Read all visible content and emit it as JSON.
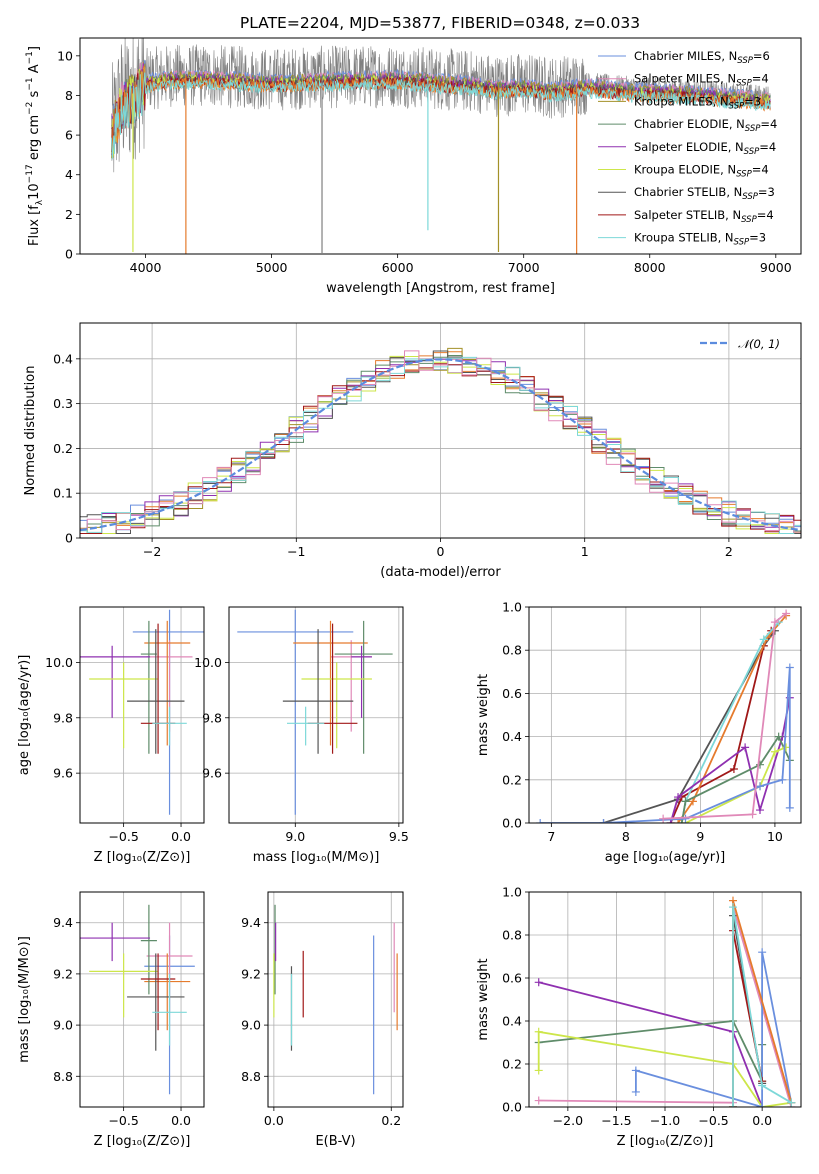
{
  "figure": {
    "title": "PLATE=2204, MJD=53877, FIBERID=0348, z=0.033"
  },
  "colors": {
    "grey": "#808080",
    "blue": "#6a8fde",
    "orange": "#e57b2d",
    "olive": "#a39128",
    "green": "#5f8c6a",
    "purple": "#8f30b0",
    "yellowgreen": "#cde64a",
    "darkgrey": "#555555",
    "darkred": "#a01818",
    "cyan": "#7dd8d8",
    "pink": "#e089b8",
    "gauss": "#5b8cde"
  },
  "legend_models": [
    {
      "label": "Chabrier MILES, N",
      "sub": "SSP",
      "tail": "=6",
      "color": "#6a8fde"
    },
    {
      "label": "Salpeter MILES, N",
      "sub": "SSP",
      "tail": "=4",
      "color": "#e089b8"
    },
    {
      "label": "Kroupa MILES, N",
      "sub": "SSP",
      "tail": "=3",
      "color": "#a39128"
    },
    {
      "label": "Chabrier ELODIE, N",
      "sub": "SSP",
      "tail": "=4",
      "color": "#5f8c6a"
    },
    {
      "label": "Salpeter ELODIE, N",
      "sub": "SSP",
      "tail": "=4",
      "color": "#8f30b0"
    },
    {
      "label": "Kroupa ELODIE, N",
      "sub": "SSP",
      "tail": "=4",
      "color": "#cde64a"
    },
    {
      "label": "Chabrier STELIB, N",
      "sub": "SSP",
      "tail": "=3",
      "color": "#555555"
    },
    {
      "label": "Salpeter STELIB, N",
      "sub": "SSP",
      "tail": "=4",
      "color": "#a01818"
    },
    {
      "label": "Kroupa STELIB, N",
      "sub": "SSP",
      "tail": "=3",
      "color": "#7dd8d8"
    }
  ],
  "chart_data": [
    {
      "id": "spectrum",
      "type": "line",
      "xlabel": "wavelength [Angstrom, rest frame]",
      "ylabel_parts": {
        "pre": "Flux [f",
        "sub1": "λ",
        "mid": "10",
        "sup1": "−17",
        "tail": " erg cm",
        "sup2": "−2",
        "tail2": " s",
        "sup3": "−1",
        "tail3": " A",
        "sup4": "−1",
        "end": "]"
      },
      "xlim": [
        3480,
        9200
      ],
      "ylim": [
        0,
        10.9
      ],
      "xticks": [
        4000,
        5000,
        6000,
        7000,
        8000,
        9000
      ],
      "yticks": [
        0,
        2,
        4,
        6,
        8,
        10
      ],
      "x_range_data": [
        3730,
        8960
      ],
      "continuum": [
        [
          3730,
          6.0
        ],
        [
          3800,
          7.6
        ],
        [
          3900,
          8.1
        ],
        [
          4000,
          8.8
        ],
        [
          4200,
          9.0
        ],
        [
          4500,
          9.0
        ],
        [
          4800,
          8.9
        ],
        [
          5000,
          8.8
        ],
        [
          5300,
          8.9
        ],
        [
          5600,
          8.95
        ],
        [
          6000,
          9.0
        ],
        [
          6300,
          8.85
        ],
        [
          6600,
          8.7
        ],
        [
          6800,
          8.5
        ],
        [
          7000,
          8.6
        ],
        [
          7200,
          8.4
        ],
        [
          7500,
          8.6
        ],
        [
          7800,
          8.4
        ],
        [
          8200,
          8.3
        ],
        [
          8600,
          8.1
        ],
        [
          8960,
          7.9
        ]
      ],
      "spikes": [
        {
          "x": 4320,
          "y": 0.0,
          "series": "orange"
        },
        {
          "x": 3900,
          "y": 0.1,
          "series": "yellowgreen"
        },
        {
          "x": 5400,
          "y": 0.05,
          "series": "grey"
        },
        {
          "x": 6240,
          "y": 1.2,
          "series": "cyan"
        },
        {
          "x": 6800,
          "y": 0.1,
          "series": "olive"
        },
        {
          "x": 7420,
          "y": 0.0,
          "series": "orange"
        }
      ]
    },
    {
      "id": "residuals",
      "type": "histogram",
      "xlabel": "(data-model)/error",
      "ylabel": "Normed distribution",
      "xlim": [
        -2.5,
        2.5
      ],
      "ylim": [
        0,
        0.48
      ],
      "xticks": [
        -2,
        -1,
        0,
        1,
        2
      ],
      "yticks": [
        0.0,
        0.1,
        0.2,
        0.3,
        0.4
      ],
      "legend": "𝒩(0, 1)",
      "bin_width": 0.1
    },
    {
      "id": "age_vs_Z",
      "type": "errorbar",
      "xlabel": "Z [log₁₀(Z/Z⊙)]",
      "ylabel": "age  [log₁₀(age/yr)]",
      "xlim": [
        -0.88,
        0.2
      ],
      "ylim": [
        9.42,
        10.2
      ],
      "xticks": [
        -0.5,
        0.0
      ],
      "yticks": [
        9.6,
        9.8,
        10.0
      ],
      "points": [
        {
          "c": "#6a8fde",
          "x": -0.1,
          "xe": 0.32,
          "y": 10.11,
          "ylo": 9.45,
          "yhi": 10.19
        },
        {
          "c": "#e089b8",
          "x": -0.1,
          "xe": 0.2,
          "y": 10.02,
          "ylo": 9.75,
          "yhi": 10.08
        },
        {
          "c": "#e57b2d",
          "x": -0.12,
          "xe": 0.2,
          "y": 10.07,
          "ylo": 9.7,
          "yhi": 10.15
        },
        {
          "c": "#5f8c6a",
          "x": -0.28,
          "xe": 0.07,
          "y": 10.03,
          "ylo": 9.67,
          "yhi": 10.15
        },
        {
          "c": "#8f30b0",
          "x": -0.6,
          "xe": 0.33,
          "y": 10.02,
          "ylo": 9.8,
          "yhi": 10.06
        },
        {
          "c": "#cde64a",
          "x": -0.5,
          "xe": 0.3,
          "y": 9.94,
          "ylo": 9.69,
          "yhi": 10.0
        },
        {
          "c": "#555555",
          "x": -0.22,
          "xe": 0.25,
          "y": 9.86,
          "ylo": 9.67,
          "yhi": 10.12
        },
        {
          "c": "#a01818",
          "x": -0.2,
          "xe": 0.15,
          "y": 9.78,
          "ylo": 9.67,
          "yhi": 10.14
        },
        {
          "c": "#7dd8d8",
          "x": -0.1,
          "xe": 0.15,
          "y": 9.78,
          "ylo": 9.7,
          "yhi": 9.84
        }
      ]
    },
    {
      "id": "age_vs_mass",
      "type": "errorbar",
      "xlabel": "mass [log₁₀(M/M⊙)]",
      "ylabel": "",
      "xlim": [
        8.68,
        9.52
      ],
      "ylim": [
        9.42,
        10.2
      ],
      "xticks": [
        9.0,
        9.5
      ],
      "yticks": [
        9.6,
        9.8,
        10.0
      ],
      "points": [
        {
          "c": "#6a8fde",
          "x": 9.0,
          "xe": 0.28,
          "y": 10.11,
          "ylo": 9.45,
          "yhi": 10.19
        },
        {
          "c": "#e089b8",
          "x": 9.27,
          "xe": 0.1,
          "y": 10.02,
          "ylo": 9.75,
          "yhi": 10.08
        },
        {
          "c": "#e57b2d",
          "x": 9.17,
          "xe": 0.18,
          "y": 10.07,
          "ylo": 9.7,
          "yhi": 10.15
        },
        {
          "c": "#5f8c6a",
          "x": 9.33,
          "xe": 0.14,
          "y": 10.03,
          "ylo": 9.67,
          "yhi": 10.15
        },
        {
          "c": "#8f30b0",
          "x": 9.32,
          "xe": 0.05,
          "y": 10.02,
          "ylo": 9.8,
          "yhi": 10.06
        },
        {
          "c": "#cde64a",
          "x": 9.2,
          "xe": 0.17,
          "y": 9.94,
          "ylo": 9.69,
          "yhi": 10.0
        },
        {
          "c": "#555555",
          "x": 9.11,
          "xe": 0.17,
          "y": 9.86,
          "ylo": 9.67,
          "yhi": 10.12
        },
        {
          "c": "#a01818",
          "x": 9.18,
          "xe": 0.12,
          "y": 9.78,
          "ylo": 9.67,
          "yhi": 10.14
        },
        {
          "c": "#7dd8d8",
          "x": 9.05,
          "xe": 0.09,
          "y": 9.78,
          "ylo": 9.7,
          "yhi": 9.84
        }
      ]
    },
    {
      "id": "massweight_vs_age",
      "type": "line",
      "xlabel": "age  [log₁₀(age/yr)]",
      "ylabel": "mass weight",
      "xlim": [
        6.7,
        10.35
      ],
      "ylim": [
        0,
        1.0
      ],
      "xticks": [
        7,
        8,
        9,
        10
      ],
      "yticks": [
        0.0,
        0.2,
        0.4,
        0.6,
        0.8,
        1.0
      ],
      "series": [
        {
          "c": "#555555",
          "x": [
            7.7,
            8.7,
            9.85,
            10.0
          ],
          "y": [
            0.0,
            0.11,
            0.82,
            0.89
          ]
        },
        {
          "c": "#a01818",
          "x": [
            8.6,
            8.75,
            9.45,
            9.85,
            9.95
          ],
          "y": [
            0.0,
            0.12,
            0.25,
            0.82,
            0.89
          ]
        },
        {
          "c": "#e57b2d",
          "x": [
            8.7,
            8.9,
            9.9,
            10.15
          ],
          "y": [
            0.0,
            0.1,
            0.86,
            0.96
          ]
        },
        {
          "c": "#7dd8d8",
          "x": [
            8.75,
            8.8,
            9.85,
            10.05
          ],
          "y": [
            0.0,
            0.1,
            0.85,
            0.93
          ]
        },
        {
          "c": "#8f30b0",
          "x": [
            8.6,
            8.7,
            9.6,
            9.8,
            10.1,
            10.2
          ],
          "y": [
            0.0,
            0.12,
            0.35,
            0.06,
            0.4,
            0.58
          ]
        },
        {
          "c": "#5f8c6a",
          "x": [
            8.75,
            8.8,
            9.8,
            10.05,
            10.2
          ],
          "y": [
            0.0,
            0.1,
            0.27,
            0.4,
            0.29
          ]
        },
        {
          "c": "#cde64a",
          "x": [
            8.8,
            9.8,
            10.0,
            10.15
          ],
          "y": [
            0.0,
            0.17,
            0.33,
            0.35
          ]
        },
        {
          "c": "#6a8fde",
          "x": [
            6.85,
            7.7,
            8.8,
            9.8,
            10.1,
            10.2,
            10.2
          ],
          "y": [
            0.0,
            0.0,
            0.02,
            0.17,
            0.2,
            0.72,
            0.07
          ]
        },
        {
          "c": "#e089b8",
          "x": [
            8.5,
            9.7,
            10.0,
            10.15
          ],
          "y": [
            0.02,
            0.04,
            0.93,
            0.97
          ]
        }
      ]
    },
    {
      "id": "mass_vs_Z",
      "type": "errorbar",
      "xlabel": "Z [log₁₀(Z/Z⊙)]",
      "ylabel": "mass [log₁₀(M/M⊙)]",
      "xlim": [
        -0.88,
        0.2
      ],
      "ylim": [
        8.68,
        9.52
      ],
      "xticks": [
        -0.5,
        0.0
      ],
      "yticks": [
        8.8,
        9.0,
        9.2,
        9.4
      ],
      "points": [
        {
          "c": "#6a8fde",
          "x": -0.1,
          "xe": 0.22,
          "y": 9.23,
          "ylo": 8.73,
          "yhi": 9.35
        },
        {
          "c": "#e089b8",
          "x": -0.1,
          "xe": 0.2,
          "y": 9.27,
          "ylo": 9.05,
          "yhi": 9.4
        },
        {
          "c": "#e57b2d",
          "x": -0.12,
          "xe": 0.2,
          "y": 9.17,
          "ylo": 8.98,
          "yhi": 9.28
        },
        {
          "c": "#5f8c6a",
          "x": -0.28,
          "xe": 0.07,
          "y": 9.33,
          "ylo": 9.12,
          "yhi": 9.47
        },
        {
          "c": "#8f30b0",
          "x": -0.6,
          "xe": 0.33,
          "y": 9.34,
          "ylo": 9.25,
          "yhi": 9.4
        },
        {
          "c": "#cde64a",
          "x": -0.5,
          "xe": 0.3,
          "y": 9.21,
          "ylo": 9.03,
          "yhi": 9.28
        },
        {
          "c": "#555555",
          "x": -0.22,
          "xe": 0.25,
          "y": 9.11,
          "ylo": 8.9,
          "yhi": 9.28
        },
        {
          "c": "#a01818",
          "x": -0.2,
          "xe": 0.15,
          "y": 9.18,
          "ylo": 8.98,
          "yhi": 9.28
        },
        {
          "c": "#7dd8d8",
          "x": -0.1,
          "xe": 0.15,
          "y": 9.05,
          "ylo": 8.92,
          "yhi": 9.2
        }
      ]
    },
    {
      "id": "mass_vs_EBV",
      "type": "errorbar",
      "xlabel": "E(B-V)",
      "ylabel": "",
      "xlim": [
        -0.01,
        0.22
      ],
      "ylim": [
        8.68,
        9.52
      ],
      "xticks": [
        0.0,
        0.2
      ],
      "yticks": [
        8.8,
        9.0,
        9.2,
        9.4
      ],
      "points": [
        {
          "c": "#6a8fde",
          "x": 0.17,
          "xe": 0.0,
          "y": 9.23,
          "ylo": 8.73,
          "yhi": 9.35
        },
        {
          "c": "#e089b8",
          "x": 0.205,
          "xe": 0.0,
          "y": 9.27,
          "ylo": 9.05,
          "yhi": 9.4
        },
        {
          "c": "#e57b2d",
          "x": 0.21,
          "xe": 0.0,
          "y": 9.17,
          "ylo": 8.98,
          "yhi": 9.28
        },
        {
          "c": "#5f8c6a",
          "x": 0.002,
          "xe": 0.0,
          "y": 9.33,
          "ylo": 9.12,
          "yhi": 9.47
        },
        {
          "c": "#8f30b0",
          "x": 0.003,
          "xe": 0.0,
          "y": 9.34,
          "ylo": 9.25,
          "yhi": 9.4
        },
        {
          "c": "#cde64a",
          "x": 0.0,
          "xe": 0.0,
          "y": 9.21,
          "ylo": 9.03,
          "yhi": 9.28
        },
        {
          "c": "#555555",
          "x": 0.03,
          "xe": 0.0,
          "y": 9.11,
          "ylo": 8.9,
          "yhi": 9.23
        },
        {
          "c": "#a01818",
          "x": 0.05,
          "xe": 0.0,
          "y": 9.18,
          "ylo": 9.03,
          "yhi": 9.29
        },
        {
          "c": "#7dd8d8",
          "x": 0.03,
          "xe": 0.0,
          "y": 9.05,
          "ylo": 8.92,
          "yhi": 9.2
        }
      ]
    },
    {
      "id": "massweight_vs_Z",
      "type": "line",
      "xlabel": "Z [log₁₀(Z/Z⊙)]",
      "ylabel": "mass weight",
      "xlim": [
        -2.4,
        0.4
      ],
      "ylim": [
        0,
        1.0
      ],
      "xticks": [
        -2.0,
        -1.5,
        -1.0,
        -0.5,
        0.0
      ],
      "yticks": [
        0.0,
        0.2,
        0.4,
        0.6,
        0.8,
        1.0
      ],
      "series": [
        {
          "c": "#8f30b0",
          "x": [
            -2.3,
            -0.3,
            0.0
          ],
          "y": [
            0.58,
            0.35,
            0.0
          ]
        },
        {
          "c": "#5f8c6a",
          "x": [
            -2.3,
            -0.3,
            0.0,
            0.0
          ],
          "y": [
            0.3,
            0.4,
            0.12,
            0.29
          ]
        },
        {
          "c": "#cde64a",
          "x": [
            -2.3,
            -2.3,
            -0.3,
            0.0,
            0.3
          ],
          "y": [
            0.17,
            0.35,
            0.2,
            0.0,
            0.02
          ]
        },
        {
          "c": "#e089b8",
          "x": [
            -2.3,
            -0.3,
            -0.3,
            0.3
          ],
          "y": [
            0.03,
            0.02,
            0.93,
            0.0
          ]
        },
        {
          "c": "#6a8fde",
          "x": [
            -1.3,
            -1.3,
            0.0,
            0.0,
            0.3
          ],
          "y": [
            0.07,
            0.17,
            0.0,
            0.72,
            0.02
          ]
        },
        {
          "c": "#555555",
          "x": [
            -0.3,
            -0.3,
            0.0
          ],
          "y": [
            0.0,
            0.89,
            0.11
          ]
        },
        {
          "c": "#a01818",
          "x": [
            -0.3,
            -0.3,
            0.0
          ],
          "y": [
            0.0,
            0.82,
            0.12
          ]
        },
        {
          "c": "#e57b2d",
          "x": [
            -0.3,
            -0.3,
            0.3
          ],
          "y": [
            0.0,
            0.96,
            0.02
          ]
        },
        {
          "c": "#7dd8d8",
          "x": [
            -0.3,
            -0.3,
            0.0,
            0.3
          ],
          "y": [
            0.0,
            0.93,
            0.1,
            0.02
          ]
        }
      ]
    }
  ]
}
